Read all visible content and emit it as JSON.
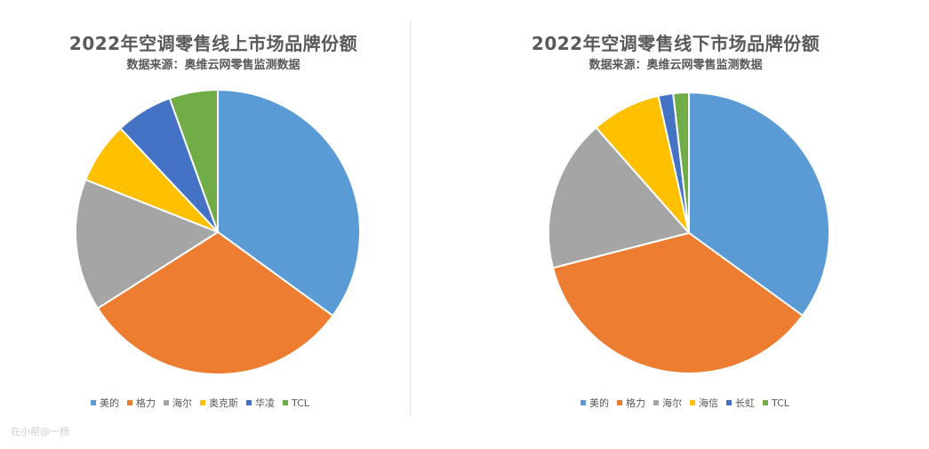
{
  "watermark": "在小帮@一杨",
  "chart_data": [
    {
      "type": "pie",
      "title": "2022年空调零售线上市场品牌份额",
      "subtitle": "数据来源：奥维云网零售监测数据",
      "categories": [
        "美的",
        "格力",
        "海尔",
        "奥克斯",
        "华凌",
        "TCL"
      ],
      "values": [
        35.0,
        31.0,
        15.0,
        7.0,
        6.5,
        5.5
      ],
      "colors": [
        "#5b9bd5",
        "#ed7d31",
        "#a5a5a5",
        "#ffc000",
        "#4472c4",
        "#70ad47"
      ],
      "legend": "bottom"
    },
    {
      "type": "pie",
      "title": "2022年空调零售线下市场品牌份额",
      "subtitle": "数据来源：奥维云网零售监测数据",
      "categories": [
        "美的",
        "格力",
        "海尔",
        "海信",
        "长虹",
        "TCL"
      ],
      "values": [
        35.0,
        36.0,
        17.5,
        8.0,
        1.7,
        1.8
      ],
      "colors": [
        "#5b9bd5",
        "#ed7d31",
        "#a5a5a5",
        "#ffc000",
        "#4472c4",
        "#70ad47"
      ],
      "legend": "bottom"
    }
  ]
}
